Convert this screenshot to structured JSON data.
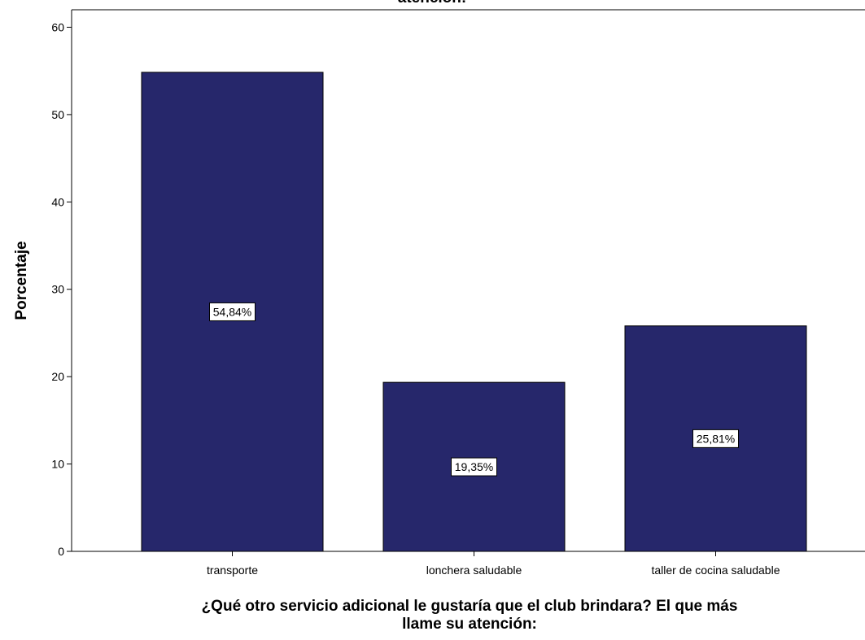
{
  "chart_data": {
    "type": "bar",
    "title_fragment": "atención:",
    "categories": [
      "transporte",
      "lonchera saludable",
      "taller de cocina saludable"
    ],
    "values": [
      54.84,
      19.35,
      25.81
    ],
    "data_labels": [
      "54,84%",
      "19,35%",
      "25,81%"
    ],
    "ylabel": "Porcentaje",
    "xlabel_lines": [
      "¿Qué otro servicio adicional le gustaría que el club brindara? El que más",
      "llame su atención:"
    ],
    "ylim": [
      0,
      62
    ],
    "yticks": [
      0,
      10,
      20,
      30,
      40,
      50,
      60
    ],
    "grid": false,
    "colors": {
      "bar": "#26276b",
      "bar_stroke": "#000000",
      "axis": "#000000",
      "label_box": "#ffffff"
    }
  }
}
